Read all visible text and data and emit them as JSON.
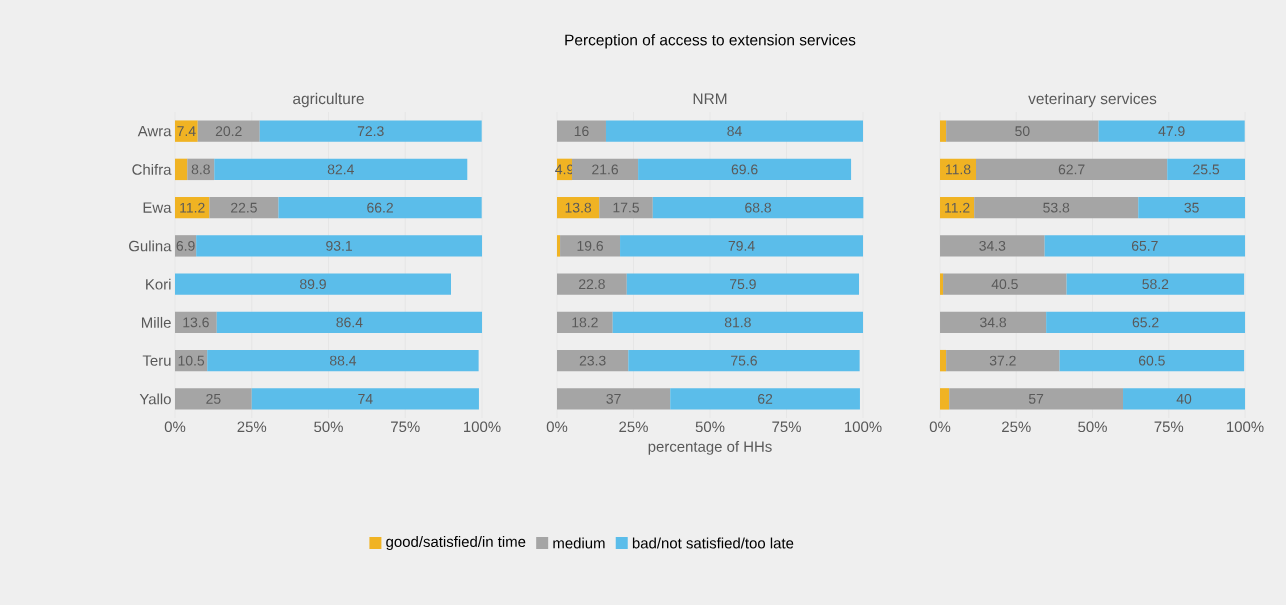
{
  "chart_data": [
    {
      "type": "bar",
      "orientation": "horizontal",
      "stacked": true,
      "title": "agriculture",
      "categories": [
        "Awra",
        "Chifra",
        "Ewa",
        "Gulina",
        "Kori",
        "Mille",
        "Teru",
        "Yallo"
      ],
      "series": [
        {
          "color": "#f0b323",
          "values": [
            7.4,
            4,
            11.2,
            null,
            null,
            null,
            null,
            null
          ],
          "value_labels": [
            "7.4",
            null,
            "11.2",
            null,
            null,
            null,
            null,
            null
          ]
        },
        {
          "color": "#a5a5a5",
          "values": [
            20.2,
            8.8,
            22.5,
            6.9,
            null,
            13.6,
            10.5,
            25
          ],
          "value_labels": [
            "20.2",
            "8.8",
            "22.5",
            "6.9",
            null,
            "13.6",
            "10.5",
            "25"
          ]
        },
        {
          "color": "#5bbdea",
          "values": [
            72.3,
            82.4,
            66.2,
            93.1,
            89.9,
            86.4,
            88.4,
            74
          ],
          "value_labels": [
            "72.3",
            "82.4",
            "66.2",
            "93.1",
            "89.9",
            "86.4",
            "88.4",
            "74"
          ]
        }
      ],
      "xlim": [
        0,
        100
      ],
      "xticks": [
        {
          "value": 0,
          "label": "0%"
        },
        {
          "value": 25,
          "label": "25%"
        },
        {
          "value": 50,
          "label": "50%"
        },
        {
          "value": 75,
          "label": "75%"
        },
        {
          "value": 100,
          "label": "100%"
        }
      ],
      "grid": "x",
      "legend": false
    },
    {
      "type": "bar",
      "orientation": "horizontal",
      "stacked": true,
      "title": "Perception of access to extension services",
      "subtitle": "NRM",
      "xlabel": "percentage of HHs",
      "categories": [
        null,
        null,
        null,
        null,
        null,
        null,
        null,
        null
      ],
      "series": [
        {
          "name": "good/satisfied/in time",
          "color": "#f0b323",
          "values": [
            null,
            4.9,
            13.8,
            1,
            null,
            null,
            null,
            null
          ],
          "value_labels": [
            null,
            "4.9",
            "13.8",
            null,
            null,
            null,
            null,
            null
          ]
        },
        {
          "name": "medium",
          "color": "#a5a5a5",
          "values": [
            16,
            21.6,
            17.5,
            19.6,
            22.8,
            18.2,
            23.3,
            37
          ],
          "value_labels": [
            "16",
            "21.6",
            "17.5",
            "19.6",
            "22.8",
            "18.2",
            "23.3",
            "37"
          ]
        },
        {
          "name": "bad/not satisfied/too late",
          "color": "#5bbdea",
          "values": [
            84,
            69.6,
            68.8,
            79.4,
            75.9,
            81.8,
            75.6,
            62
          ],
          "value_labels": [
            "84",
            "69.6",
            "68.8",
            "79.4",
            "75.9",
            "81.8",
            "75.6",
            "62"
          ]
        }
      ],
      "xlim": [
        0,
        100
      ],
      "xticks": [
        {
          "value": 0,
          "label": "0%"
        },
        {
          "value": 25,
          "label": "25%"
        },
        {
          "value": 50,
          "label": "50%"
        },
        {
          "value": 75,
          "label": "75%"
        },
        {
          "value": 100,
          "label": "100%"
        }
      ],
      "grid": "x",
      "legend": "bottom",
      "tick_labels": "x"
    },
    {
      "type": "bar",
      "orientation": "horizontal",
      "stacked": true,
      "title": "veterinary services",
      "categories": [
        null,
        null,
        null,
        null,
        null,
        null,
        null,
        null
      ],
      "series": [
        {
          "color": "#f0b323",
          "values": [
            2,
            11.8,
            11.2,
            null,
            1,
            null,
            2,
            3
          ],
          "value_labels": [
            null,
            "11.8",
            "11.2",
            null,
            null,
            null,
            null,
            null
          ]
        },
        {
          "color": "#a5a5a5",
          "values": [
            50,
            62.7,
            53.8,
            34.3,
            40.5,
            34.8,
            37.2,
            57
          ],
          "value_labels": [
            "50",
            "62.7",
            "53.8",
            "34.3",
            "40.5",
            "34.8",
            "37.2",
            "57"
          ]
        },
        {
          "color": "#5bbdea",
          "values": [
            47.9,
            25.5,
            35,
            65.7,
            58.2,
            65.2,
            60.5,
            40
          ],
          "value_labels": [
            "47.9",
            "25.5",
            "35",
            "65.7",
            "58.2",
            "65.2",
            "60.5",
            "40"
          ]
        }
      ],
      "xlim": [
        0,
        100
      ],
      "xticks": [
        {
          "value": 0,
          "label": "0%"
        },
        {
          "value": 25,
          "label": "25%"
        },
        {
          "value": 50,
          "label": "50%"
        },
        {
          "value": 75,
          "label": "75%"
        },
        {
          "value": 100,
          "label": "100%"
        }
      ],
      "grid": "x",
      "legend": false,
      "tick_labels": "x"
    }
  ]
}
